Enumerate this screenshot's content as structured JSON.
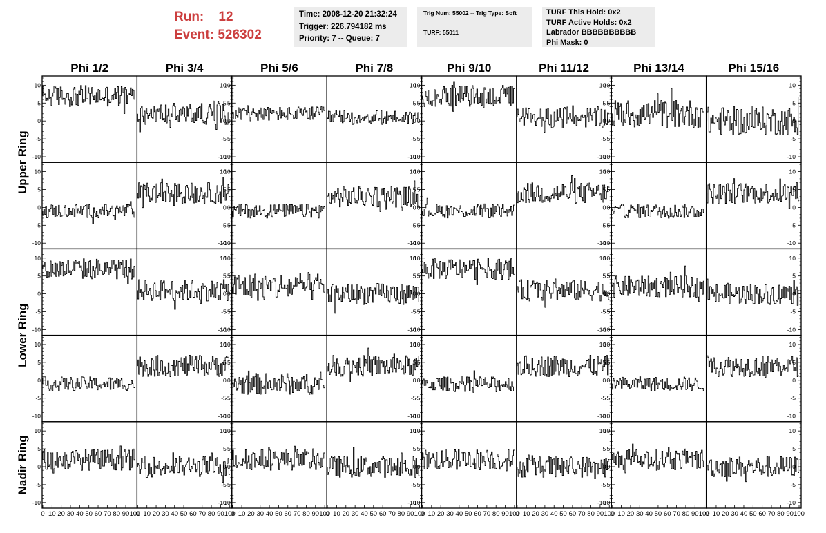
{
  "header": {
    "run_label": "Run:",
    "run_value": "12",
    "event_label": "Event:",
    "event_value": "526302"
  },
  "info_time": {
    "time": "Time: 2008-12-20 21:32:24",
    "trigger": "Trigger: 226.794182 ms",
    "priority": "Priority: 7 -- Queue: 7"
  },
  "info_trig": {
    "trig": "Trig Num: 55002 -- Trig Type: Soft",
    "turf": "TURF: 55011"
  },
  "info_turf": {
    "this_hold": "TURF This Hold: 0x2",
    "active_holds": "TURF Active Holds: 0x2",
    "labrador": "Labrador BBBBBBBBBB",
    "phi_mask": "Phi Mask: 0"
  },
  "colors": {
    "title_red": "#cc3f3f",
    "info_bg": "#ececec",
    "trace": "#000000"
  },
  "chart_data": {
    "type": "line",
    "columns": [
      "Phi 1/2",
      "Phi 3/4",
      "Phi 5/6",
      "Phi 7/8",
      "Phi 9/10",
      "Phi 11/12",
      "Phi 13/14",
      "Phi 15/16"
    ],
    "ring_labels": [
      {
        "label": "Upper Ring",
        "rows": [
          0,
          1
        ]
      },
      {
        "label": "Lower Ring",
        "rows": [
          2,
          3
        ]
      },
      {
        "label": "Nadir Ring",
        "rows": [
          4
        ]
      }
    ],
    "xlim": [
      0,
      100
    ],
    "ylim": [
      -11,
      12
    ],
    "x_ticks": [
      "0",
      "10",
      "20",
      "30",
      "40",
      "50",
      "60",
      "70",
      "80",
      "90",
      "100"
    ],
    "y_ticks": [
      "-10",
      "-5",
      "0",
      "5",
      "10"
    ],
    "x_samples": 100,
    "panel_baselines": [
      [
        7,
        2,
        2,
        1,
        7,
        1,
        2,
        0
      ],
      [
        -1,
        4,
        -1,
        3,
        -1,
        4,
        -1,
        4
      ],
      [
        7,
        1,
        2,
        0,
        7,
        1,
        2,
        0
      ],
      [
        -1,
        4,
        -1,
        4,
        -1,
        4,
        -1,
        4
      ],
      [
        2,
        0,
        2,
        0,
        2,
        0,
        2,
        0
      ]
    ],
    "panel_amplitude": [
      [
        3,
        3,
        2,
        2,
        3,
        3,
        4,
        4
      ],
      [
        2,
        3,
        2,
        3,
        2,
        3,
        2,
        3
      ],
      [
        3,
        3,
        4,
        3,
        3,
        3,
        3,
        3
      ],
      [
        2,
        3,
        3,
        3,
        2,
        3,
        2,
        3
      ],
      [
        3,
        3,
        3,
        3,
        3,
        3,
        3,
        3
      ]
    ],
    "x_axis_row": 4,
    "y_axis_side": "alternating left/right"
  }
}
